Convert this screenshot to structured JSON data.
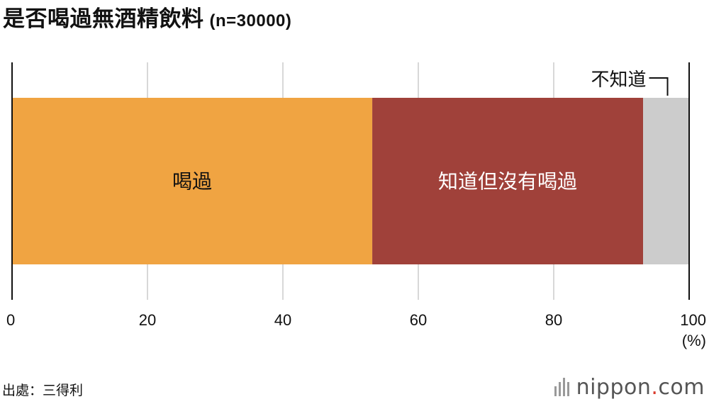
{
  "title": "是否喝過無酒精飲料",
  "sample_size": "(n=30000)",
  "source": "出處：三得利",
  "logo": {
    "name": "nippon",
    "dot": ".",
    "tld": "com"
  },
  "colors": {
    "drank": "#f0a442",
    "known_not_drank": "#a0413a",
    "unknown": "#cccccc",
    "grid": "#cccccc",
    "axis": "#111111"
  },
  "chart_data": {
    "type": "bar",
    "orientation": "horizontal",
    "stacked": true,
    "unit": "(%)",
    "xlim": [
      0,
      100
    ],
    "x_ticks": [
      0,
      20,
      40,
      60,
      80,
      100
    ],
    "grid": true,
    "series": [
      {
        "name": "喝過",
        "value": 53.2,
        "color": "#f0a442",
        "label_color": "#111111"
      },
      {
        "name": "知道但沒有喝過",
        "value": 40.0,
        "color": "#a0413a",
        "label_color": "#ffffff"
      },
      {
        "name": "不知道",
        "value": 6.8,
        "color": "#cccccc",
        "label_color": "#111111",
        "label_position": "outside-top"
      }
    ]
  }
}
